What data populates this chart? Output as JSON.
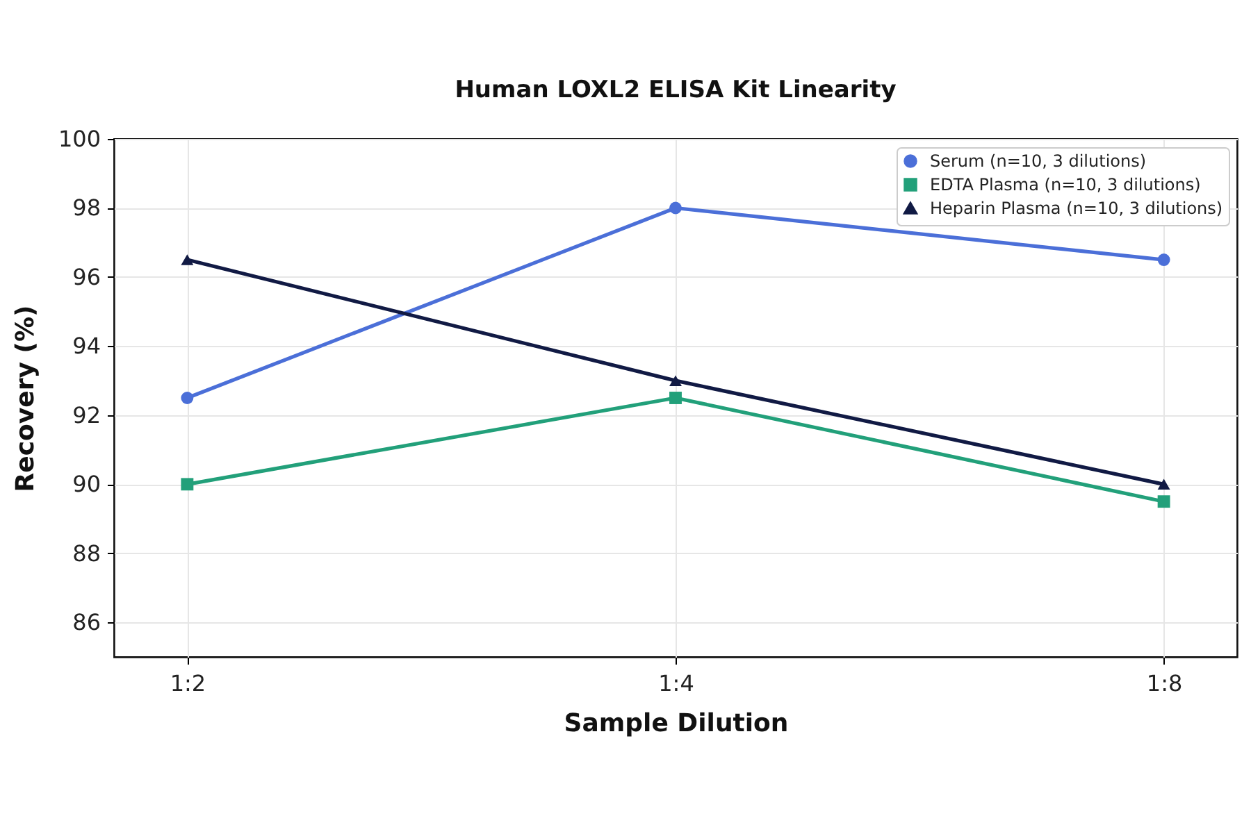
{
  "chart_data": {
    "type": "line",
    "title": "Human LOXL2 ELISA Kit Linearity",
    "xlabel": "Sample Dilution",
    "ylabel": "Recovery (%)",
    "categories": [
      "1:2",
      "1:4",
      "1:8"
    ],
    "series": [
      {
        "name": "Serum (n=10, 3 dilutions)",
        "color": "#4b6fd8",
        "marker": "circle",
        "values": [
          92.5,
          98,
          96.5
        ]
      },
      {
        "name": "EDTA Plasma (n=10, 3 dilutions)",
        "color": "#22a07a",
        "marker": "square",
        "values": [
          90,
          92.5,
          89.5
        ]
      },
      {
        "name": "Heparin Plasma (n=10, 3 dilutions)",
        "color": "#111a44",
        "marker": "triangle",
        "values": [
          96.5,
          93,
          90
        ]
      }
    ],
    "ylim": [
      85,
      100
    ],
    "yticks": [
      86,
      88,
      90,
      92,
      94,
      96,
      98,
      100
    ],
    "grid": true,
    "legend": "top right",
    "line_style": "solid"
  }
}
